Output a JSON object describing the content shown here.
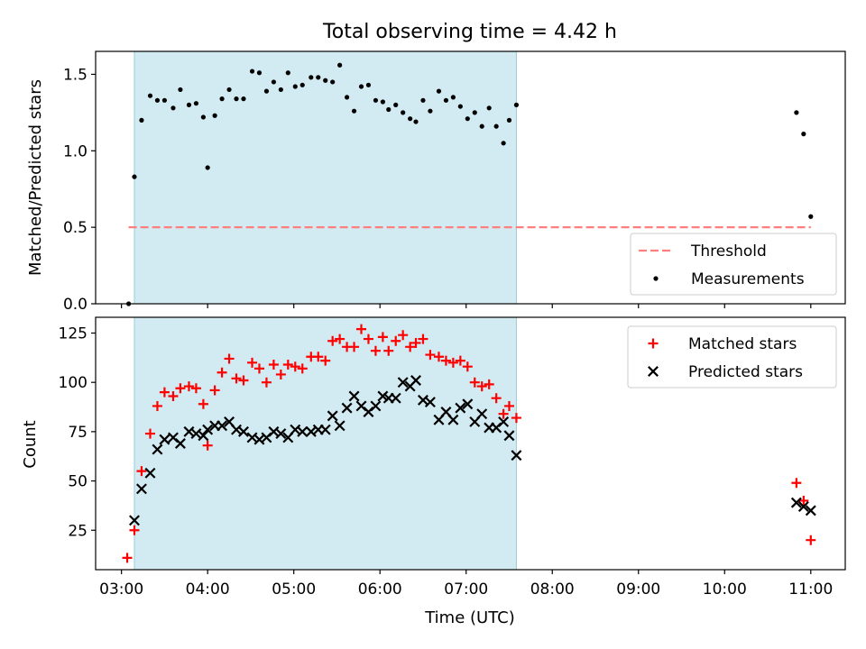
{
  "chart_data": [
    {
      "type": "scatter",
      "title": "Total observing time = 4.42 h",
      "ylabel": "Matched/Predicted stars",
      "xlim": [
        "02:42",
        "11:24"
      ],
      "ylim": [
        0,
        1.65
      ],
      "y_ticks": [
        "0.0",
        "0.5",
        "1.0",
        "1.5"
      ],
      "shaded_region": {
        "x0": "03:09",
        "x1": "07:35",
        "color": "#add8e6"
      },
      "threshold": {
        "label": "Threshold",
        "y": 0.5,
        "x0": "03:05",
        "x1": "11:00",
        "color": "#ff7f7f",
        "style": "dashed"
      },
      "legend": {
        "position": "lower right",
        "entries": [
          "Threshold",
          "Measurements"
        ]
      },
      "series": [
        {
          "name": "Measurements",
          "marker": "dot",
          "color": "#000000",
          "points": [
            [
              "03:05",
              0.0
            ],
            [
              "03:09",
              0.83
            ],
            [
              "03:14",
              1.2
            ],
            [
              "03:20",
              1.36
            ],
            [
              "03:25",
              1.33
            ],
            [
              "03:30",
              1.33
            ],
            [
              "03:36",
              1.28
            ],
            [
              "03:41",
              1.4
            ],
            [
              "03:47",
              1.3
            ],
            [
              "03:52",
              1.31
            ],
            [
              "03:57",
              1.22
            ],
            [
              "04:00",
              0.89
            ],
            [
              "04:05",
              1.23
            ],
            [
              "04:10",
              1.34
            ],
            [
              "04:15",
              1.4
            ],
            [
              "04:20",
              1.34
            ],
            [
              "04:25",
              1.34
            ],
            [
              "04:31",
              1.52
            ],
            [
              "04:36",
              1.51
            ],
            [
              "04:41",
              1.39
            ],
            [
              "04:46",
              1.45
            ],
            [
              "04:51",
              1.4
            ],
            [
              "04:56",
              1.51
            ],
            [
              "05:01",
              1.42
            ],
            [
              "05:06",
              1.43
            ],
            [
              "05:12",
              1.48
            ],
            [
              "05:17",
              1.48
            ],
            [
              "05:22",
              1.46
            ],
            [
              "05:27",
              1.45
            ],
            [
              "05:32",
              1.56
            ],
            [
              "05:37",
              1.35
            ],
            [
              "05:42",
              1.26
            ],
            [
              "05:47",
              1.42
            ],
            [
              "05:52",
              1.43
            ],
            [
              "05:57",
              1.33
            ],
            [
              "06:02",
              1.32
            ],
            [
              "06:06",
              1.27
            ],
            [
              "06:11",
              1.3
            ],
            [
              "06:16",
              1.25
            ],
            [
              "06:21",
              1.21
            ],
            [
              "06:25",
              1.19
            ],
            [
              "06:30",
              1.33
            ],
            [
              "06:35",
              1.26
            ],
            [
              "06:41",
              1.39
            ],
            [
              "06:46",
              1.33
            ],
            [
              "06:51",
              1.35
            ],
            [
              "06:56",
              1.29
            ],
            [
              "07:01",
              1.21
            ],
            [
              "07:06",
              1.25
            ],
            [
              "07:11",
              1.16
            ],
            [
              "07:16",
              1.28
            ],
            [
              "07:21",
              1.16
            ],
            [
              "07:26",
              1.05
            ],
            [
              "07:30",
              1.2
            ],
            [
              "07:35",
              1.3
            ],
            [
              "10:50",
              1.25
            ],
            [
              "10:55",
              1.11
            ],
            [
              "11:00",
              0.57
            ]
          ]
        }
      ]
    },
    {
      "type": "scatter",
      "xlabel": "Time (UTC)",
      "ylabel": "Count",
      "xlim": [
        "02:42",
        "11:24"
      ],
      "ylim": [
        5,
        133
      ],
      "x_ticks": [
        "03:00",
        "04:00",
        "05:00",
        "06:00",
        "07:00",
        "08:00",
        "09:00",
        "10:00",
        "11:00"
      ],
      "y_ticks": [
        "25",
        "50",
        "75",
        "100",
        "125"
      ],
      "shaded_region": {
        "x0": "03:09",
        "x1": "07:35",
        "color": "#add8e6"
      },
      "legend": {
        "position": "upper right",
        "entries": [
          "Matched stars",
          "Predicted stars"
        ]
      },
      "series": [
        {
          "name": "Matched stars",
          "marker": "plus",
          "color": "#ff0000",
          "points": [
            [
              "03:04",
              11
            ],
            [
              "03:09",
              25
            ],
            [
              "03:14",
              55
            ],
            [
              "03:20",
              74
            ],
            [
              "03:25",
              88
            ],
            [
              "03:30",
              95
            ],
            [
              "03:36",
              93
            ],
            [
              "03:41",
              97
            ],
            [
              "03:47",
              98
            ],
            [
              "03:52",
              97
            ],
            [
              "03:57",
              89
            ],
            [
              "04:00",
              68
            ],
            [
              "04:05",
              96
            ],
            [
              "04:10",
              105
            ],
            [
              "04:15",
              112
            ],
            [
              "04:20",
              102
            ],
            [
              "04:25",
              101
            ],
            [
              "04:31",
              110
            ],
            [
              "04:36",
              107
            ],
            [
              "04:41",
              100
            ],
            [
              "04:46",
              109
            ],
            [
              "04:51",
              104
            ],
            [
              "04:56",
              109
            ],
            [
              "05:01",
              108
            ],
            [
              "05:06",
              107
            ],
            [
              "05:12",
              113
            ],
            [
              "05:17",
              113
            ],
            [
              "05:22",
              111
            ],
            [
              "05:27",
              121
            ],
            [
              "05:32",
              122
            ],
            [
              "05:37",
              118
            ],
            [
              "05:42",
              118
            ],
            [
              "05:47",
              127
            ],
            [
              "05:52",
              122
            ],
            [
              "05:57",
              116
            ],
            [
              "06:02",
              123
            ],
            [
              "06:06",
              116
            ],
            [
              "06:11",
              121
            ],
            [
              "06:16",
              124
            ],
            [
              "06:21",
              118
            ],
            [
              "06:25",
              120
            ],
            [
              "06:30",
              122
            ],
            [
              "06:35",
              114
            ],
            [
              "06:41",
              113
            ],
            [
              "06:46",
              111
            ],
            [
              "06:51",
              110
            ],
            [
              "06:56",
              111
            ],
            [
              "07:01",
              108
            ],
            [
              "07:06",
              100
            ],
            [
              "07:11",
              98
            ],
            [
              "07:16",
              99
            ],
            [
              "07:21",
              92
            ],
            [
              "07:26",
              84
            ],
            [
              "07:30",
              88
            ],
            [
              "07:35",
              82
            ],
            [
              "10:50",
              49
            ],
            [
              "10:55",
              40
            ],
            [
              "11:00",
              20
            ]
          ]
        },
        {
          "name": "Predicted stars",
          "marker": "x",
          "color": "#000000",
          "points": [
            [
              "03:09",
              30
            ],
            [
              "03:14",
              46
            ],
            [
              "03:20",
              54
            ],
            [
              "03:25",
              66
            ],
            [
              "03:30",
              71
            ],
            [
              "03:36",
              72
            ],
            [
              "03:41",
              69
            ],
            [
              "03:47",
              75
            ],
            [
              "03:52",
              74
            ],
            [
              "03:57",
              73
            ],
            [
              "04:00",
              76
            ],
            [
              "04:05",
              78
            ],
            [
              "04:10",
              78
            ],
            [
              "04:15",
              80
            ],
            [
              "04:20",
              76
            ],
            [
              "04:25",
              75
            ],
            [
              "04:31",
              72
            ],
            [
              "04:36",
              71
            ],
            [
              "04:41",
              72
            ],
            [
              "04:46",
              75
            ],
            [
              "04:51",
              74
            ],
            [
              "04:56",
              72
            ],
            [
              "05:01",
              76
            ],
            [
              "05:06",
              75
            ],
            [
              "05:12",
              75
            ],
            [
              "05:17",
              76
            ],
            [
              "05:22",
              76
            ],
            [
              "05:27",
              83
            ],
            [
              "05:32",
              78
            ],
            [
              "05:37",
              87
            ],
            [
              "05:42",
              93
            ],
            [
              "05:47",
              88
            ],
            [
              "05:52",
              85
            ],
            [
              "05:57",
              88
            ],
            [
              "06:02",
              93
            ],
            [
              "06:06",
              92
            ],
            [
              "06:11",
              92
            ],
            [
              "06:16",
              100
            ],
            [
              "06:21",
              98
            ],
            [
              "06:25",
              101
            ],
            [
              "06:30",
              91
            ],
            [
              "06:35",
              90
            ],
            [
              "06:41",
              81
            ],
            [
              "06:46",
              85
            ],
            [
              "06:51",
              81
            ],
            [
              "06:56",
              87
            ],
            [
              "07:01",
              89
            ],
            [
              "07:06",
              80
            ],
            [
              "07:11",
              84
            ],
            [
              "07:16",
              77
            ],
            [
              "07:21",
              77
            ],
            [
              "07:26",
              80
            ],
            [
              "07:30",
              73
            ],
            [
              "07:35",
              63
            ],
            [
              "10:50",
              39
            ],
            [
              "10:55",
              37
            ],
            [
              "11:00",
              35
            ]
          ]
        }
      ]
    }
  ]
}
